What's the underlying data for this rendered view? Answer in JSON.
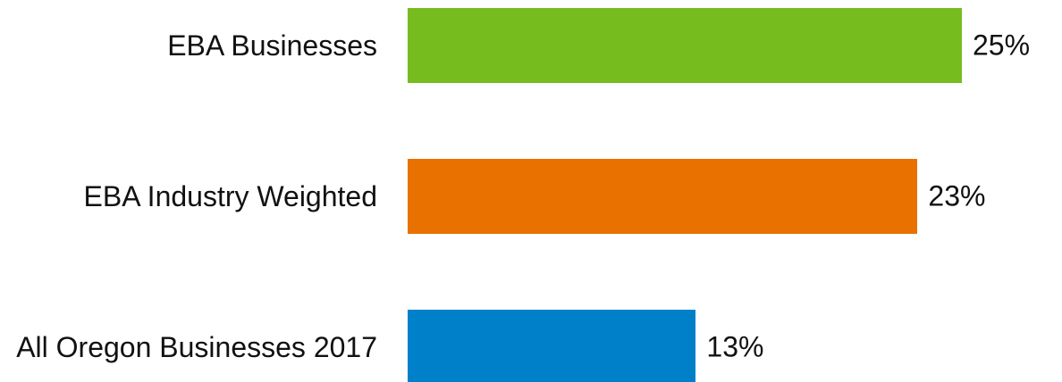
{
  "chart_data": {
    "type": "bar",
    "orientation": "horizontal",
    "categories": [
      "EBA Businesses",
      "EBA Industry Weighted",
      "All Oregon Businesses 2017"
    ],
    "values": [
      25,
      23,
      13
    ],
    "value_labels": [
      "25%",
      "23%",
      "13%"
    ],
    "colors": [
      "#77bc1f",
      "#e87100",
      "#0080c9"
    ]
  }
}
